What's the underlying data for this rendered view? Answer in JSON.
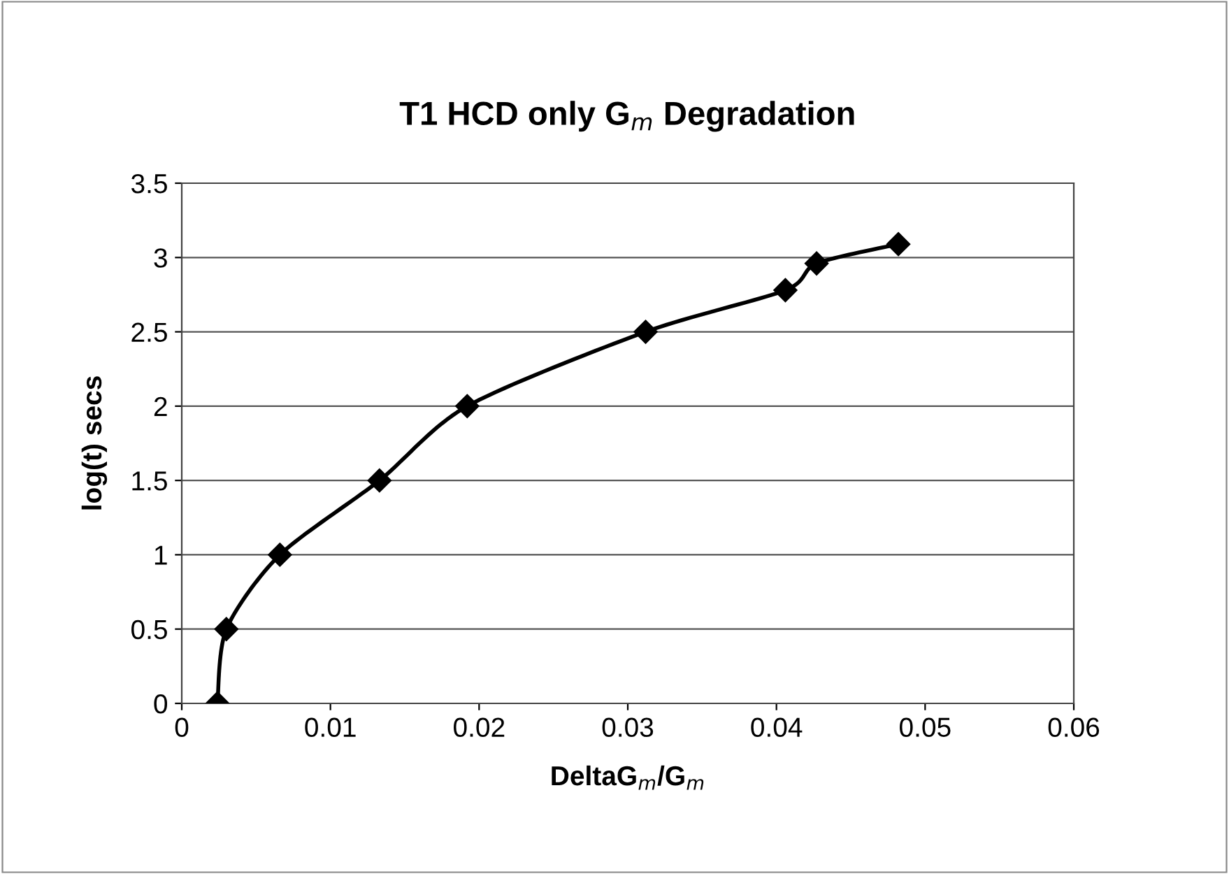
{
  "chart_data": {
    "type": "line",
    "title": "T1 HCD only G$_{m}$ Degradation",
    "xlabel": "DeltaG$_{m}$/G$_{m}$",
    "ylabel": "log(t) secs",
    "x": [
      0.0024,
      0.003,
      0.0066,
      0.0133,
      0.0192,
      0.0312,
      0.0406,
      0.0427,
      0.0482
    ],
    "series": [
      {
        "color": "#000000",
        "values": [
          0,
          0.5,
          1,
          1.5,
          2,
          2.5,
          2.78,
          2.96,
          3.09
        ]
      }
    ],
    "xlim": [
      0,
      0.06
    ],
    "xticks": [
      0,
      0.01,
      0.02,
      0.03,
      0.04,
      0.05,
      0.06
    ],
    "ylim": [
      0,
      3.5
    ],
    "yticks": [
      0,
      0.5,
      1,
      1.5,
      2,
      2.5,
      3,
      3.5
    ],
    "grid": "y",
    "legend": false,
    "marker": "diamond",
    "line_style": "solid"
  }
}
